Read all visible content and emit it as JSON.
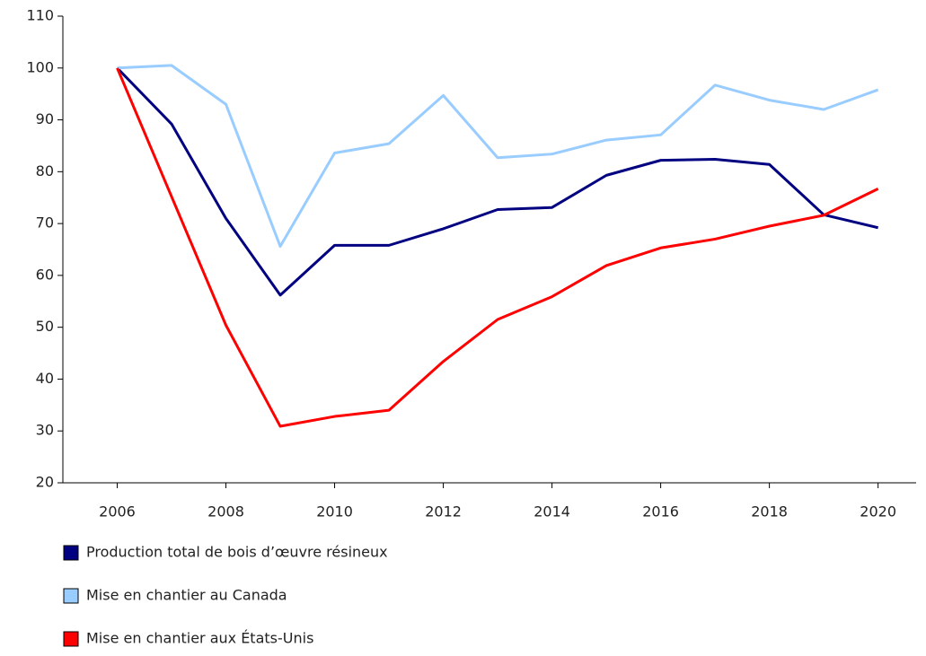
{
  "chart_data": {
    "type": "line",
    "x": [
      2006,
      2007,
      2008,
      2009,
      2010,
      2011,
      2012,
      2013,
      2014,
      2015,
      2016,
      2017,
      2018,
      2019,
      2020
    ],
    "series": [
      {
        "name": "Production total de bois d’œuvre résineux",
        "color": "#000080",
        "values": [
          100,
          89.2,
          71.0,
          56.2,
          65.8,
          65.8,
          69.0,
          72.7,
          73.1,
          79.3,
          82.2,
          82.4,
          81.4,
          71.7,
          69.2
        ]
      },
      {
        "name": "Mise en chantier au Canada",
        "color": "#99ccff",
        "values": [
          100,
          100.5,
          93.0,
          65.6,
          83.6,
          85.4,
          94.7,
          82.7,
          83.4,
          86.1,
          87.1,
          96.7,
          93.8,
          92.0,
          95.8
        ]
      },
      {
        "name": "Mise en chantier aux États-Unis",
        "color": "#ff0000",
        "values": [
          100,
          75.2,
          50.4,
          30.9,
          32.8,
          34.0,
          43.4,
          51.5,
          55.9,
          61.9,
          65.3,
          67.0,
          69.5,
          71.6,
          76.7
        ]
      }
    ],
    "xlim": [
      2005,
      2020.7
    ],
    "xticks": [
      2006,
      2008,
      2010,
      2012,
      2014,
      2016,
      2018,
      2020
    ],
    "ylim": [
      20,
      110
    ],
    "yticks": [
      20,
      30,
      40,
      50,
      60,
      70,
      80,
      90,
      100,
      110
    ],
    "grid": false
  }
}
